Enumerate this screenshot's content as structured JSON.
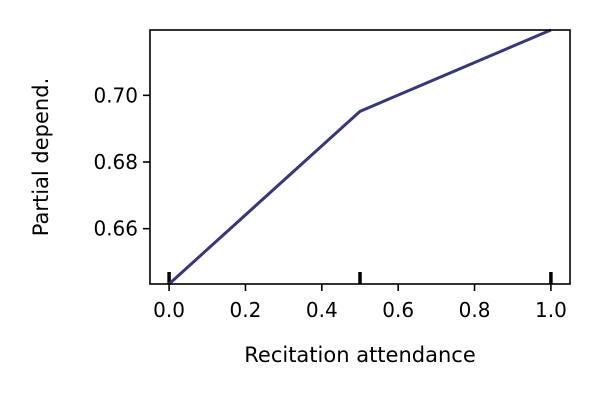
{
  "chart_data": {
    "type": "line",
    "title": "",
    "xlabel": "Recitation attendance",
    "ylabel": "Partial depend.",
    "xlim": [
      -0.05,
      1.05
    ],
    "ylim": [
      0.6434,
      0.7196
    ],
    "x_ticks": [
      0.0,
      0.2,
      0.4,
      0.6,
      0.8,
      1.0
    ],
    "x_tick_labels": [
      "0.0",
      "0.2",
      "0.4",
      "0.6",
      "0.8",
      "1.0"
    ],
    "y_ticks": [
      0.66,
      0.68,
      0.7
    ],
    "y_tick_labels": [
      "0.66",
      "0.68",
      "0.70"
    ],
    "grid": false,
    "legend": "none",
    "series": [
      {
        "x": [
          0.0,
          0.5,
          1.0
        ],
        "values": [
          0.6434,
          0.6952,
          0.7196
        ],
        "color": "#37377a"
      }
    ],
    "rug_x": [
      0.0,
      0.5,
      1.0
    ]
  }
}
